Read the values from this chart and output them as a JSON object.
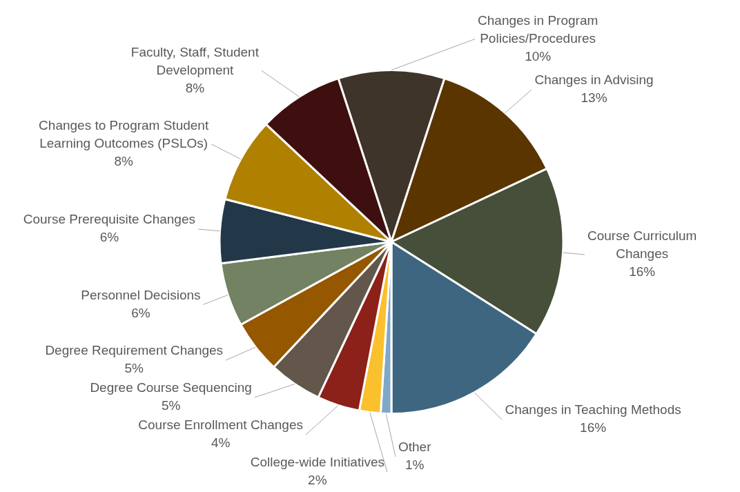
{
  "chart_data": {
    "type": "pie",
    "categories": [
      "Changes in Program Policies/Procedures",
      "Changes in Advising",
      "Course Curriculum Changes",
      "Changes in Teaching Methods",
      "Other",
      "College-wide Initiatives",
      "Course Enrollment Changes",
      "Degree Course Sequencing",
      "Degree Requirement Changes",
      "Personnel Decisions",
      "Course Prerequisite Changes",
      "Changes to Program Student Learning Outcomes (PSLOs)",
      "Faculty, Staff, Student Development"
    ],
    "values": [
      10,
      13,
      16,
      16,
      1,
      2,
      4,
      5,
      5,
      6,
      6,
      8,
      8
    ],
    "value_labels": [
      "10%",
      "13%",
      "16%",
      "16%",
      "1%",
      "2%",
      "4%",
      "5%",
      "5%",
      "6%",
      "6%",
      "8%",
      "8%"
    ],
    "colors": [
      "#3e342a",
      "#5a3500",
      "#454f3a",
      "#3e6680",
      "#7fa8c8",
      "#fbc02d",
      "#8b2119",
      "#62574a",
      "#955700",
      "#728262",
      "#223848",
      "#b08000",
      "#3f0f10"
    ],
    "legend": false
  }
}
